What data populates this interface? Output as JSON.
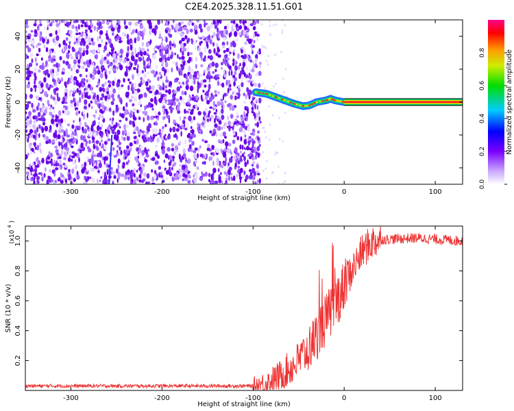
{
  "title": "C2E4.2025.328.11.51.G01",
  "chart_data": [
    {
      "type": "heatmap",
      "name": "spectrogram",
      "xlabel": "Height of straight line (km)",
      "ylabel": "Frequency (Hz)",
      "xlim": [
        -350,
        130
      ],
      "ylim": [
        -50,
        50
      ],
      "xticks": [
        -300,
        -200,
        -100,
        0,
        100
      ],
      "xtick_labels": [
        "-300",
        "-200",
        "-100",
        "0",
        "100"
      ],
      "yticks": [
        -40,
        -20,
        0,
        20,
        40
      ],
      "ytick_labels": [
        "-40",
        "-20",
        "0",
        "20",
        "40"
      ],
      "noise_region_x": [
        -350,
        -92
      ],
      "signal_track": [
        {
          "x": -97,
          "f": 6
        },
        {
          "x": -85,
          "f": 5
        },
        {
          "x": -75,
          "f": 3
        },
        {
          "x": -65,
          "f": 1
        },
        {
          "x": -55,
          "f": -1
        },
        {
          "x": -45,
          "f": -2.5
        },
        {
          "x": -38,
          "f": -2
        },
        {
          "x": -30,
          "f": 0
        },
        {
          "x": -20,
          "f": 1
        },
        {
          "x": -15,
          "f": 2
        },
        {
          "x": -10,
          "f": 1
        },
        {
          "x": -5,
          "f": 0.5
        },
        {
          "x": 0,
          "f": 0
        },
        {
          "x": 130,
          "f": 0
        }
      ],
      "colorbar": {
        "label": "Normalized spectral amplitude",
        "range": [
          0,
          1
        ],
        "ticks": [
          0.0,
          0.2,
          0.4,
          0.6,
          0.8
        ],
        "tick_labels": [
          "0.0",
          "0.2",
          "0.4",
          "0.6",
          "0.8"
        ]
      }
    },
    {
      "type": "line",
      "name": "snr",
      "xlabel": "Height of straight line (km)",
      "ylabel": "SNR (10 * v/v)",
      "scale_label": "(x10",
      "scale_exponent": "4",
      "scale_close": ")",
      "xlim": [
        -350,
        130
      ],
      "ylim": [
        0,
        1.1
      ],
      "xticks": [
        -300,
        -200,
        -100,
        0,
        100
      ],
      "xtick_labels": [
        "-300",
        "-200",
        "-100",
        "0",
        "100"
      ],
      "yticks": [
        0.2,
        0.4,
        0.6,
        0.8,
        1.0
      ],
      "ytick_labels": [
        "0.2",
        "0.4",
        "0.6",
        "0.8",
        "1.0"
      ],
      "color": "#ee3333",
      "envelope": [
        {
          "x": -350,
          "y": 0.03
        },
        {
          "x": -100,
          "y": 0.03
        },
        {
          "x": -85,
          "y": 0.05
        },
        {
          "x": -70,
          "y": 0.1
        },
        {
          "x": -55,
          "y": 0.17
        },
        {
          "x": -40,
          "y": 0.27
        },
        {
          "x": -25,
          "y": 0.42
        },
        {
          "x": -10,
          "y": 0.58
        },
        {
          "x": 0,
          "y": 0.7
        },
        {
          "x": 10,
          "y": 0.82
        },
        {
          "x": 20,
          "y": 0.93
        },
        {
          "x": 30,
          "y": 0.99
        },
        {
          "x": 40,
          "y": 1.01
        },
        {
          "x": 80,
          "y": 1.02
        },
        {
          "x": 130,
          "y": 1.0
        }
      ]
    }
  ]
}
